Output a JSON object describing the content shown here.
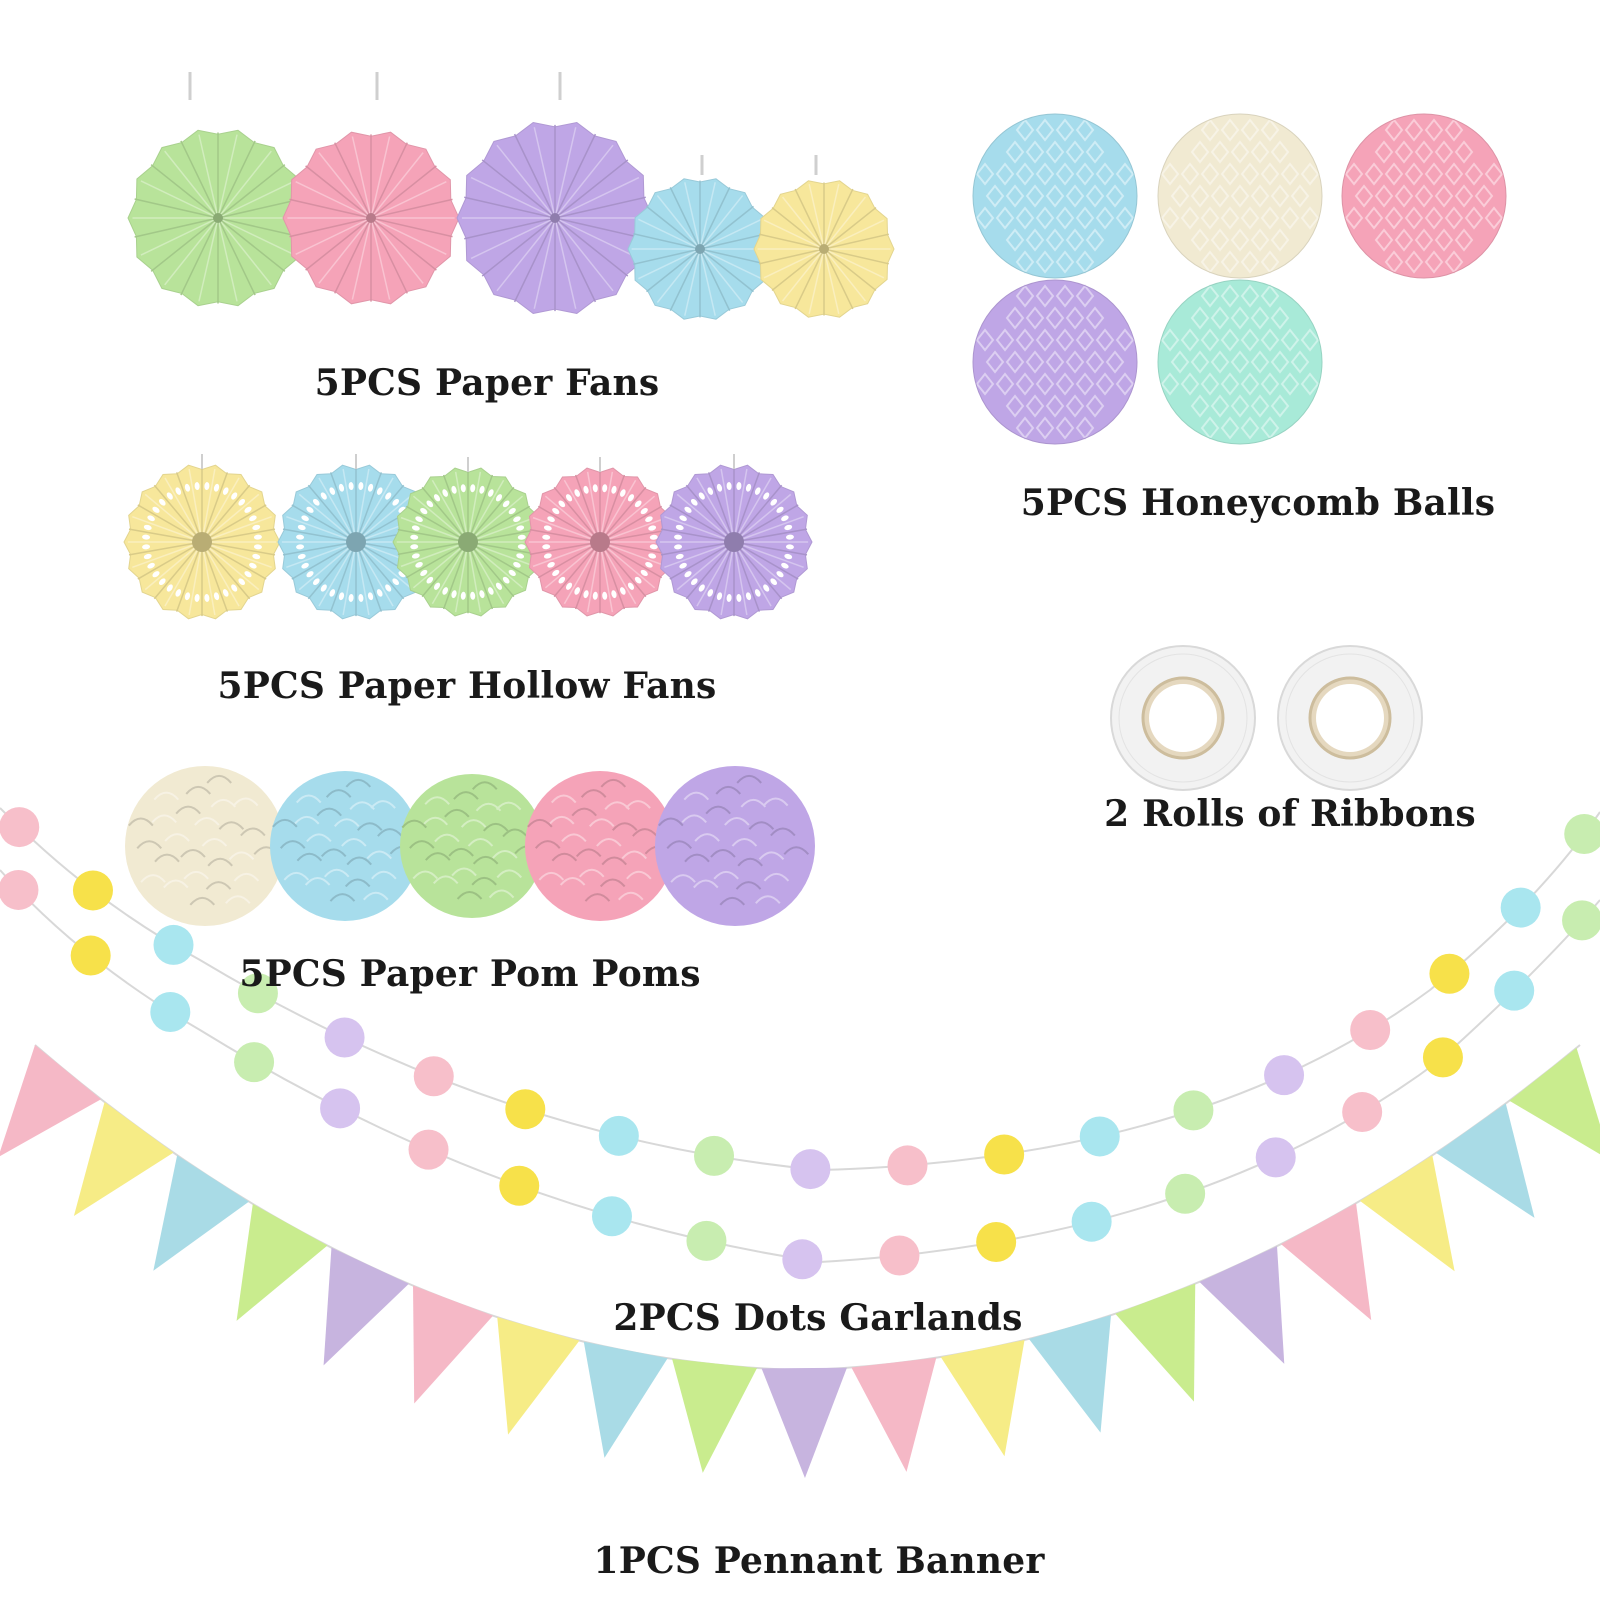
{
  "labels": {
    "paper_fans": "5PCS Paper Fans",
    "honeycomb_balls": "5PCS Honeycomb Balls",
    "hollow_fans": "5PCS Paper Hollow Fans",
    "ribbons": "2 Rolls of Ribbons",
    "pom_poms": "5PCS Paper Pom Poms",
    "dots_garlands": "2PCS Dots Garlands",
    "pennant_banner": "1PCS Pennant Banner"
  },
  "colors": {
    "green": "#b8e39a",
    "pink": "#f5a3b8",
    "purple": "#bfa6e6",
    "blue": "#a6dcec",
    "yellow": "#f7e79b",
    "mint": "#a8ead8",
    "cream": "#f1ead2",
    "dot_pink": "#f7bfca",
    "dot_yellow": "#f7e14a",
    "dot_blue": "#a9e6ef",
    "dot_green": "#c8edb0",
    "dot_purple": "#d6c3ef",
    "pen_pink": "#f5b8c6",
    "pen_yellow": "#f6ec86",
    "pen_blue": "#a9dbe6",
    "pen_green": "#c9ec8e",
    "pen_purple": "#c7b4df"
  }
}
